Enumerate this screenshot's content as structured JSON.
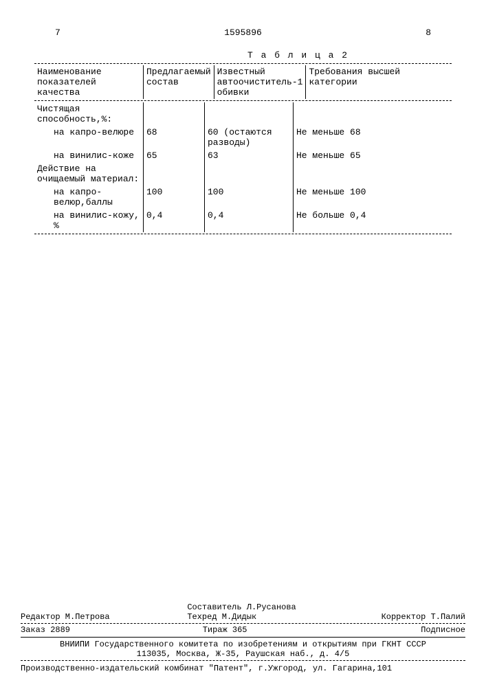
{
  "header": {
    "page_left": "7",
    "doc_number": "1595896",
    "page_right": "8"
  },
  "table": {
    "title": "Т а б л и ц а 2",
    "columns": [
      "Наименование показателей качества",
      "Предлагаемый состав",
      "Известный автоочиститель-1 обивки",
      "Требования высшей категории"
    ],
    "rows": [
      {
        "c1": "Чистящая способность,%:",
        "c2": "",
        "c3": "",
        "c4": ""
      },
      {
        "c1_indent": "на капро-велюре",
        "c2": "68",
        "c3": "60 (остаются разводы)",
        "c4": "Не меньше 68"
      },
      {
        "c1_indent": "на винилис-коже",
        "c2": "65",
        "c3": "63",
        "c4": "Не меньше 65"
      },
      {
        "c1": "Действие на очищаемый материал:",
        "c2": "",
        "c3": "",
        "c4": ""
      },
      {
        "c1_indent": "на капро-велюр,баллы",
        "c2": "100",
        "c3": "100",
        "c4": "Не меньше 100"
      },
      {
        "c1_indent": "на винилис-кожу, %",
        "c2": "0,4",
        "c3": "0,4",
        "c4": "Не больше 0,4"
      }
    ]
  },
  "footer": {
    "compiler": "Составитель Л.Русанова",
    "editor": "Редактор М.Петрова",
    "tech_editor": "Техред М.Дидык",
    "corrector": "Корректор Т.Палий",
    "order": "Заказ 2889",
    "tirazh": "Тираж 365",
    "subscription": "Подписное",
    "org": "ВНИИПИ Государственного комитета по изобретениям и открытиям при ГКНТ СССР",
    "address": "113035, Москва, Ж-35, Раушская наб., д. 4/5",
    "producer": "Производственно-издательский комбинат \"Патент\", г.Ужгород, ул. Гагарина,101"
  }
}
